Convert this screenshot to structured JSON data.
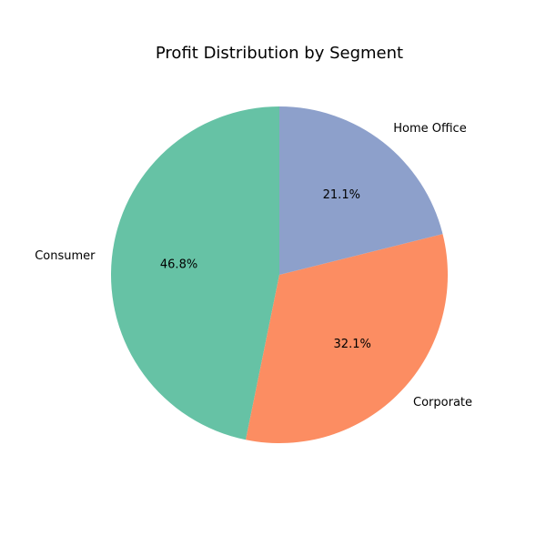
{
  "chart_data": {
    "type": "pie",
    "title": "Profit Distribution by Segment",
    "categories": [
      "Consumer",
      "Corporate",
      "Home Office"
    ],
    "values": [
      46.8,
      32.1,
      21.1
    ],
    "labels": [
      "46.8%",
      "32.1%",
      "21.1%"
    ],
    "colors": [
      "#66c2a5",
      "#fc8d62",
      "#8da0cb"
    ],
    "start_angle_deg": 90,
    "direction": "counterclockwise"
  }
}
